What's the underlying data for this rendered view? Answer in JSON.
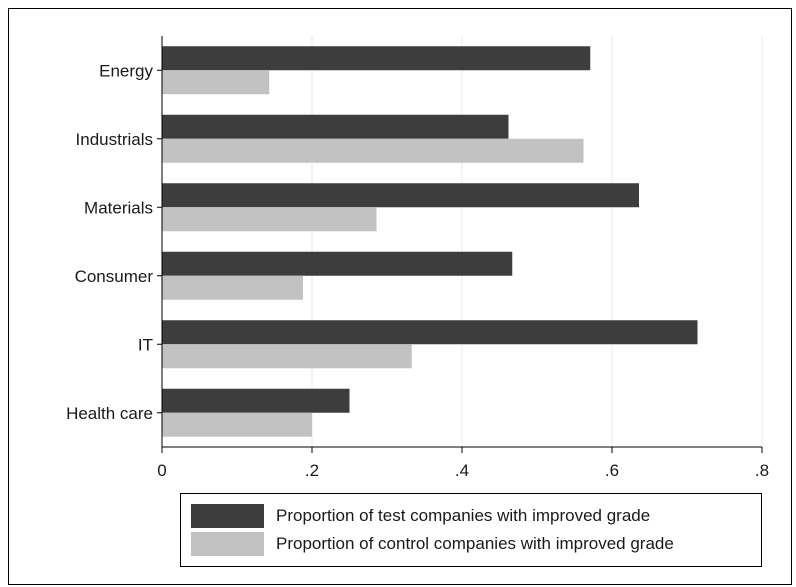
{
  "chart_data": {
    "type": "bar",
    "orientation": "horizontal",
    "categories": [
      "Energy",
      "Industrials",
      "Materials",
      "Consumer",
      "IT",
      "Health care"
    ],
    "series": [
      {
        "name": "Proportion of test companies with improved grade",
        "color": "#3d3d3d",
        "values": [
          0.571,
          0.462,
          0.636,
          0.467,
          0.714,
          0.25
        ]
      },
      {
        "name": "Proportion of control companies with improved grade",
        "color": "#c2c2c2",
        "values": [
          0.143,
          0.562,
          0.286,
          0.188,
          0.333,
          0.2
        ]
      }
    ],
    "xticks": [
      0,
      0.2,
      0.4,
      0.6,
      0.8
    ],
    "xtick_labels": [
      "0",
      ".2",
      ".4",
      ".6",
      ".8"
    ],
    "xlim": [
      0,
      0.8
    ],
    "title": "",
    "xlabel": "",
    "ylabel": "",
    "grid": "vertical",
    "grid_color": "#e8e8e8",
    "legend_position": "bottom"
  }
}
